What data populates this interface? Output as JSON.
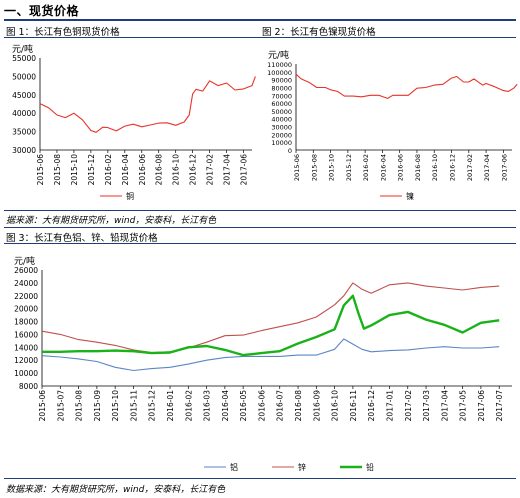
{
  "section": {
    "title": "一、现货价格"
  },
  "captions": {
    "fig1": "图 1：长江有色铜现货价格",
    "fig2": "图 2：长江有色镍现货价格",
    "fig3": "图 3：长江有色铝、锌、铅现货价格"
  },
  "sources": {
    "top": "据来源：大有期货研究所，wind，安泰科，长江有色",
    "bottom": "数据来源：大有期货研究所，wind，安泰科，长江有色"
  },
  "colors": {
    "copper": "#e8332a",
    "nickel": "#e8332a",
    "aluminum": "#5b86c5",
    "zinc": "#c0504d",
    "lead": "#19b219",
    "rule": "#1f3d7a"
  },
  "chart_data": [
    {
      "type": "line",
      "unit_label": "元/吨",
      "ylim": [
        30000,
        55000
      ],
      "yticks": [
        "30000",
        "35000",
        "40000",
        "45000",
        "50000",
        "55000"
      ],
      "categories": [
        "2015-06",
        "2015-08",
        "2015-10",
        "2015-12",
        "2016-02",
        "2016-04",
        "2016-06",
        "2016-08",
        "2016-10",
        "2016-12",
        "2017-02",
        "2017-04",
        "2017-06"
      ],
      "series": [
        {
          "name": "铜",
          "points": [
            [
              0,
              42600
            ],
            [
              0.5,
              41500
            ],
            [
              1,
              39500
            ],
            [
              1.5,
              38800
            ],
            [
              2,
              40000
            ],
            [
              2.5,
              38200
            ],
            [
              3,
              35300
            ],
            [
              3.3,
              34800
            ],
            [
              3.7,
              36200
            ],
            [
              4,
              36100
            ],
            [
              4.5,
              35200
            ],
            [
              5,
              36500
            ],
            [
              5.5,
              37000
            ],
            [
              6,
              36300
            ],
            [
              6.5,
              36800
            ],
            [
              7,
              37300
            ],
            [
              7.5,
              37400
            ],
            [
              8,
              36700
            ],
            [
              8.5,
              37600
            ],
            [
              8.8,
              39500
            ],
            [
              9,
              45200
            ],
            [
              9.2,
              46500
            ],
            [
              9.6,
              46000
            ],
            [
              10,
              48800
            ],
            [
              10.5,
              47500
            ],
            [
              11,
              48200
            ],
            [
              11.5,
              46300
            ],
            [
              12,
              46600
            ],
            [
              12.5,
              47500
            ],
            [
              12.7,
              50000
            ]
          ]
        }
      ]
    },
    {
      "type": "line",
      "unit_label": "元/吨",
      "ylim": [
        0,
        110000
      ],
      "yticks": [
        "0",
        "10000",
        "20000",
        "30000",
        "40000",
        "50000",
        "60000",
        "70000",
        "80000",
        "90000",
        "100000",
        "110000"
      ],
      "categories": [
        "2015-06",
        "2015-08",
        "2015-10",
        "2015-12",
        "2016-02",
        "2016-04",
        "2016-06",
        "2016-08",
        "2016-10",
        "2016-12",
        "2017-02",
        "2017-04",
        "2017-06"
      ],
      "series": [
        {
          "name": "镍",
          "points": [
            [
              0,
              97000
            ],
            [
              0.3,
              91000
            ],
            [
              0.8,
              86000
            ],
            [
              1.2,
              80000
            ],
            [
              1.7,
              80000
            ],
            [
              2,
              77000
            ],
            [
              2.4,
              75000
            ],
            [
              2.8,
              69000
            ],
            [
              3.3,
              69000
            ],
            [
              3.8,
              68000
            ],
            [
              4.3,
              70000
            ],
            [
              4.8,
              70000
            ],
            [
              5.3,
              66000
            ],
            [
              5.6,
              70000
            ],
            [
              6,
              70000
            ],
            [
              6.5,
              70000
            ],
            [
              7,
              79000
            ],
            [
              7.5,
              80000
            ],
            [
              8,
              83000
            ],
            [
              8.5,
              84000
            ],
            [
              9,
              92000
            ],
            [
              9.3,
              94000
            ],
            [
              9.7,
              87000
            ],
            [
              10,
              87000
            ],
            [
              10.3,
              91000
            ],
            [
              10.8,
              83000
            ],
            [
              11,
              85000
            ],
            [
              11.5,
              81000
            ],
            [
              12,
              76000
            ],
            [
              12.3,
              75000
            ],
            [
              12.6,
              79000
            ],
            [
              12.8,
              84000
            ]
          ]
        }
      ]
    },
    {
      "type": "line",
      "unit_label": "元/吨",
      "ylim": [
        8000,
        26000
      ],
      "yticks": [
        "8000",
        "10000",
        "12000",
        "14000",
        "16000",
        "18000",
        "20000",
        "22000",
        "24000",
        "26000"
      ],
      "categories": [
        "2015-06",
        "2015-07",
        "2015-08",
        "2015-09",
        "2015-10",
        "2015-11",
        "2015-12",
        "2016-01",
        "2016-02",
        "2016-03",
        "2016-04",
        "2016-05",
        "2016-06",
        "2016-07",
        "2016-08",
        "2016-09",
        "2016-10",
        "2016-11",
        "2016-12",
        "2017-01",
        "2017-02",
        "2017-03",
        "2017-04",
        "2017-05",
        "2017-06",
        "2017-07"
      ],
      "legend": [
        "铝",
        "锌",
        "铅"
      ],
      "series": [
        {
          "name": "铝",
          "points": [
            [
              0,
              12700
            ],
            [
              1,
              12500
            ],
            [
              2,
              12200
            ],
            [
              3,
              11800
            ],
            [
              4,
              10900
            ],
            [
              5,
              10400
            ],
            [
              6,
              10700
            ],
            [
              7,
              10900
            ],
            [
              8,
              11400
            ],
            [
              9,
              12000
            ],
            [
              10,
              12400
            ],
            [
              11,
              12600
            ],
            [
              12,
              12600
            ],
            [
              13,
              12600
            ],
            [
              14,
              12800
            ],
            [
              15,
              12800
            ],
            [
              16,
              13700
            ],
            [
              16.5,
              15300
            ],
            [
              17,
              14500
            ],
            [
              17.5,
              13700
            ],
            [
              18,
              13300
            ],
            [
              19,
              13500
            ],
            [
              20,
              13600
            ],
            [
              21,
              13900
            ],
            [
              22,
              14100
            ],
            [
              23,
              13900
            ],
            [
              24,
              13900
            ],
            [
              25,
              14100
            ]
          ]
        },
        {
          "name": "锌",
          "points": [
            [
              0,
              16500
            ],
            [
              1,
              16000
            ],
            [
              2,
              15200
            ],
            [
              3,
              14800
            ],
            [
              4,
              14300
            ],
            [
              5,
              13600
            ],
            [
              6,
              13200
            ],
            [
              7,
              13300
            ],
            [
              8,
              13900
            ],
            [
              9,
              14800
            ],
            [
              10,
              15800
            ],
            [
              11,
              15900
            ],
            [
              12,
              16600
            ],
            [
              13,
              17200
            ],
            [
              14,
              17800
            ],
            [
              15,
              18700
            ],
            [
              16,
              20600
            ],
            [
              16.5,
              22000
            ],
            [
              17,
              24000
            ],
            [
              17.5,
              23000
            ],
            [
              18,
              22400
            ],
            [
              19,
              23700
            ],
            [
              20,
              24000
            ],
            [
              21,
              23500
            ],
            [
              22,
              23200
            ],
            [
              23,
              22900
            ],
            [
              24,
              23300
            ],
            [
              25,
              23500
            ]
          ]
        },
        {
          "name": "铅",
          "points": [
            [
              0,
              13300
            ],
            [
              1,
              13300
            ],
            [
              2,
              13400
            ],
            [
              3,
              13400
            ],
            [
              4,
              13500
            ],
            [
              5,
              13400
            ],
            [
              6,
              13100
            ],
            [
              7,
              13200
            ],
            [
              8,
              14000
            ],
            [
              9,
              14200
            ],
            [
              10,
              13600
            ],
            [
              11,
              12800
            ],
            [
              12,
              13100
            ],
            [
              13,
              13400
            ],
            [
              14,
              14600
            ],
            [
              15,
              15600
            ],
            [
              16,
              16800
            ],
            [
              16.5,
              20500
            ],
            [
              17,
              22000
            ],
            [
              17.3,
              19300
            ],
            [
              17.6,
              16900
            ],
            [
              18,
              17400
            ],
            [
              19,
              19000
            ],
            [
              20,
              19500
            ],
            [
              21,
              18300
            ],
            [
              22,
              17500
            ],
            [
              23,
              16300
            ],
            [
              24,
              17800
            ],
            [
              25,
              18200
            ]
          ]
        }
      ]
    }
  ]
}
